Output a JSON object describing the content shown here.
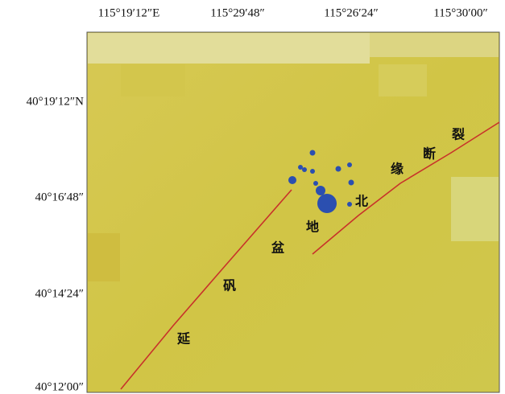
{
  "map": {
    "longitude_labels": [
      "115°19′12″E",
      "115°29′48″",
      "115°26′24″",
      "115°30′00″"
    ],
    "latitude_labels": [
      "40°19′12″N",
      "40°16′48″",
      "40°14′24″",
      "40°12′00″"
    ],
    "annotations": [
      "延",
      "矾",
      "盆",
      "地",
      "北",
      "缘",
      "断",
      "裂"
    ]
  }
}
